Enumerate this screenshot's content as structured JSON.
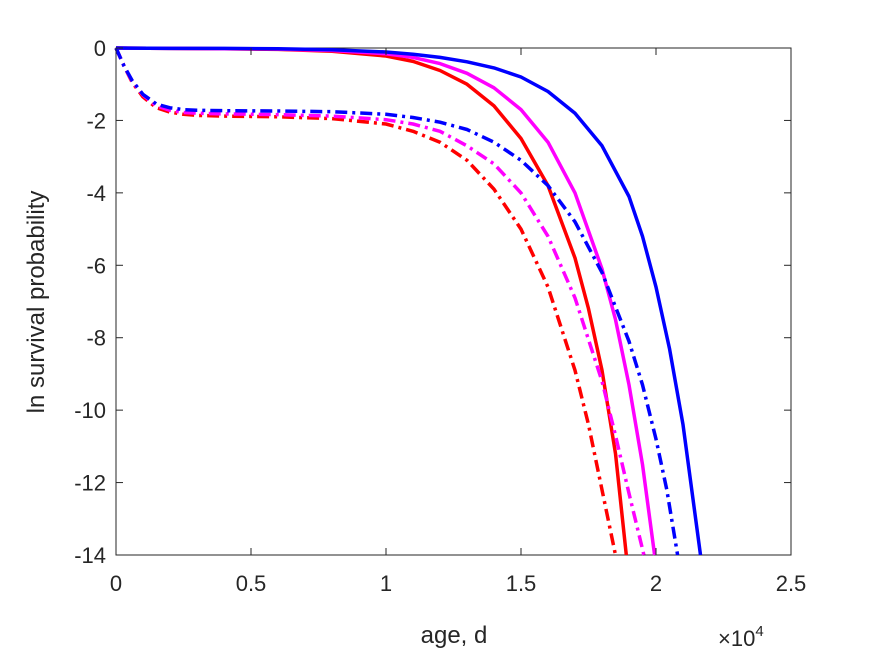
{
  "chart_data": {
    "type": "line",
    "xlabel": "age, d",
    "ylabel": "ln survival probability",
    "x_exponent_label": "×10",
    "x_exponent_power": "4",
    "xlim": [
      0,
      25000
    ],
    "ylim": [
      -14,
      0
    ],
    "x_ticks": [
      0,
      5000,
      10000,
      15000,
      20000,
      25000
    ],
    "x_tick_labels": [
      "0",
      "0.5",
      "1",
      "1.5",
      "2",
      "2.5"
    ],
    "y_ticks": [
      0,
      -2,
      -4,
      -6,
      -8,
      -10,
      -12,
      -14
    ],
    "y_tick_labels": [
      "0",
      "-2",
      "-4",
      "-6",
      "-8",
      "-10",
      "-12",
      "-14"
    ],
    "grid": false,
    "series": [
      {
        "color": "#ff0000",
        "dash": "solid",
        "x": [
          0,
          2000,
          4000,
          6000,
          8000,
          10000,
          11000,
          12000,
          13000,
          14000,
          15000,
          16000,
          17000,
          17500,
          18000,
          18500,
          18900
        ],
        "y": [
          0,
          -0.01,
          -0.02,
          -0.04,
          -0.09,
          -0.22,
          -0.37,
          -0.62,
          -1.0,
          -1.6,
          -2.5,
          -3.8,
          -5.8,
          -7.2,
          -8.9,
          -11.2,
          -14
        ]
      },
      {
        "color": "#ff00ff",
        "dash": "solid",
        "x": [
          0,
          2000,
          4000,
          6000,
          8000,
          10000,
          11000,
          12000,
          13000,
          14000,
          15000,
          16000,
          17000,
          18000,
          18500,
          19000,
          19500,
          19950
        ],
        "y": [
          0,
          -0.01,
          -0.02,
          -0.03,
          -0.07,
          -0.16,
          -0.26,
          -0.43,
          -0.7,
          -1.1,
          -1.7,
          -2.6,
          -4.0,
          -6.1,
          -7.5,
          -9.3,
          -11.5,
          -14
        ]
      },
      {
        "color": "#0000ff",
        "dash": "solid",
        "x": [
          0,
          2000,
          4000,
          6000,
          8000,
          10000,
          11000,
          12000,
          13000,
          14000,
          15000,
          16000,
          17000,
          18000,
          19000,
          19500,
          20000,
          20500,
          21000,
          21650
        ],
        "y": [
          0,
          -0.01,
          -0.01,
          -0.02,
          -0.05,
          -0.11,
          -0.17,
          -0.26,
          -0.38,
          -0.55,
          -0.8,
          -1.2,
          -1.8,
          -2.7,
          -4.1,
          -5.2,
          -6.6,
          -8.3,
          -10.4,
          -14
        ]
      },
      {
        "color": "#ff0000",
        "dash": "dashdot",
        "x": [
          0,
          300,
          600,
          1000,
          1500,
          2000,
          2500,
          3000,
          4000,
          6000,
          8000,
          10000,
          11000,
          12000,
          13000,
          14000,
          15000,
          16000,
          17000,
          17500,
          18000,
          18500
        ],
        "y": [
          0,
          -0.5,
          -0.95,
          -1.35,
          -1.65,
          -1.77,
          -1.83,
          -1.86,
          -1.88,
          -1.9,
          -1.95,
          -2.1,
          -2.3,
          -2.6,
          -3.1,
          -3.9,
          -5.0,
          -6.6,
          -8.9,
          -10.4,
          -12.2,
          -14
        ]
      },
      {
        "color": "#ff00ff",
        "dash": "dashdot",
        "x": [
          0,
          300,
          600,
          1000,
          1500,
          2000,
          2500,
          3000,
          4000,
          6000,
          8000,
          10000,
          11000,
          12000,
          13000,
          14000,
          15000,
          16000,
          17000,
          18000,
          18500,
          19000,
          19550
        ],
        "y": [
          0,
          -0.5,
          -0.92,
          -1.3,
          -1.6,
          -1.72,
          -1.78,
          -1.8,
          -1.82,
          -1.84,
          -1.88,
          -1.98,
          -2.1,
          -2.3,
          -2.7,
          -3.2,
          -4.0,
          -5.2,
          -6.9,
          -9.2,
          -10.7,
          -12.3,
          -14
        ]
      },
      {
        "color": "#0000ff",
        "dash": "dashdot",
        "x": [
          0,
          300,
          600,
          1000,
          1500,
          2000,
          2500,
          3000,
          4000,
          6000,
          8000,
          10000,
          11000,
          12000,
          13000,
          14000,
          15000,
          16000,
          17000,
          18000,
          19000,
          19500,
          20000,
          20400,
          20800
        ],
        "y": [
          0,
          -0.5,
          -0.9,
          -1.28,
          -1.55,
          -1.65,
          -1.7,
          -1.72,
          -1.73,
          -1.74,
          -1.76,
          -1.83,
          -1.92,
          -2.05,
          -2.25,
          -2.6,
          -3.1,
          -3.8,
          -4.8,
          -6.2,
          -8.1,
          -9.3,
          -10.8,
          -12.2,
          -14
        ]
      }
    ]
  }
}
